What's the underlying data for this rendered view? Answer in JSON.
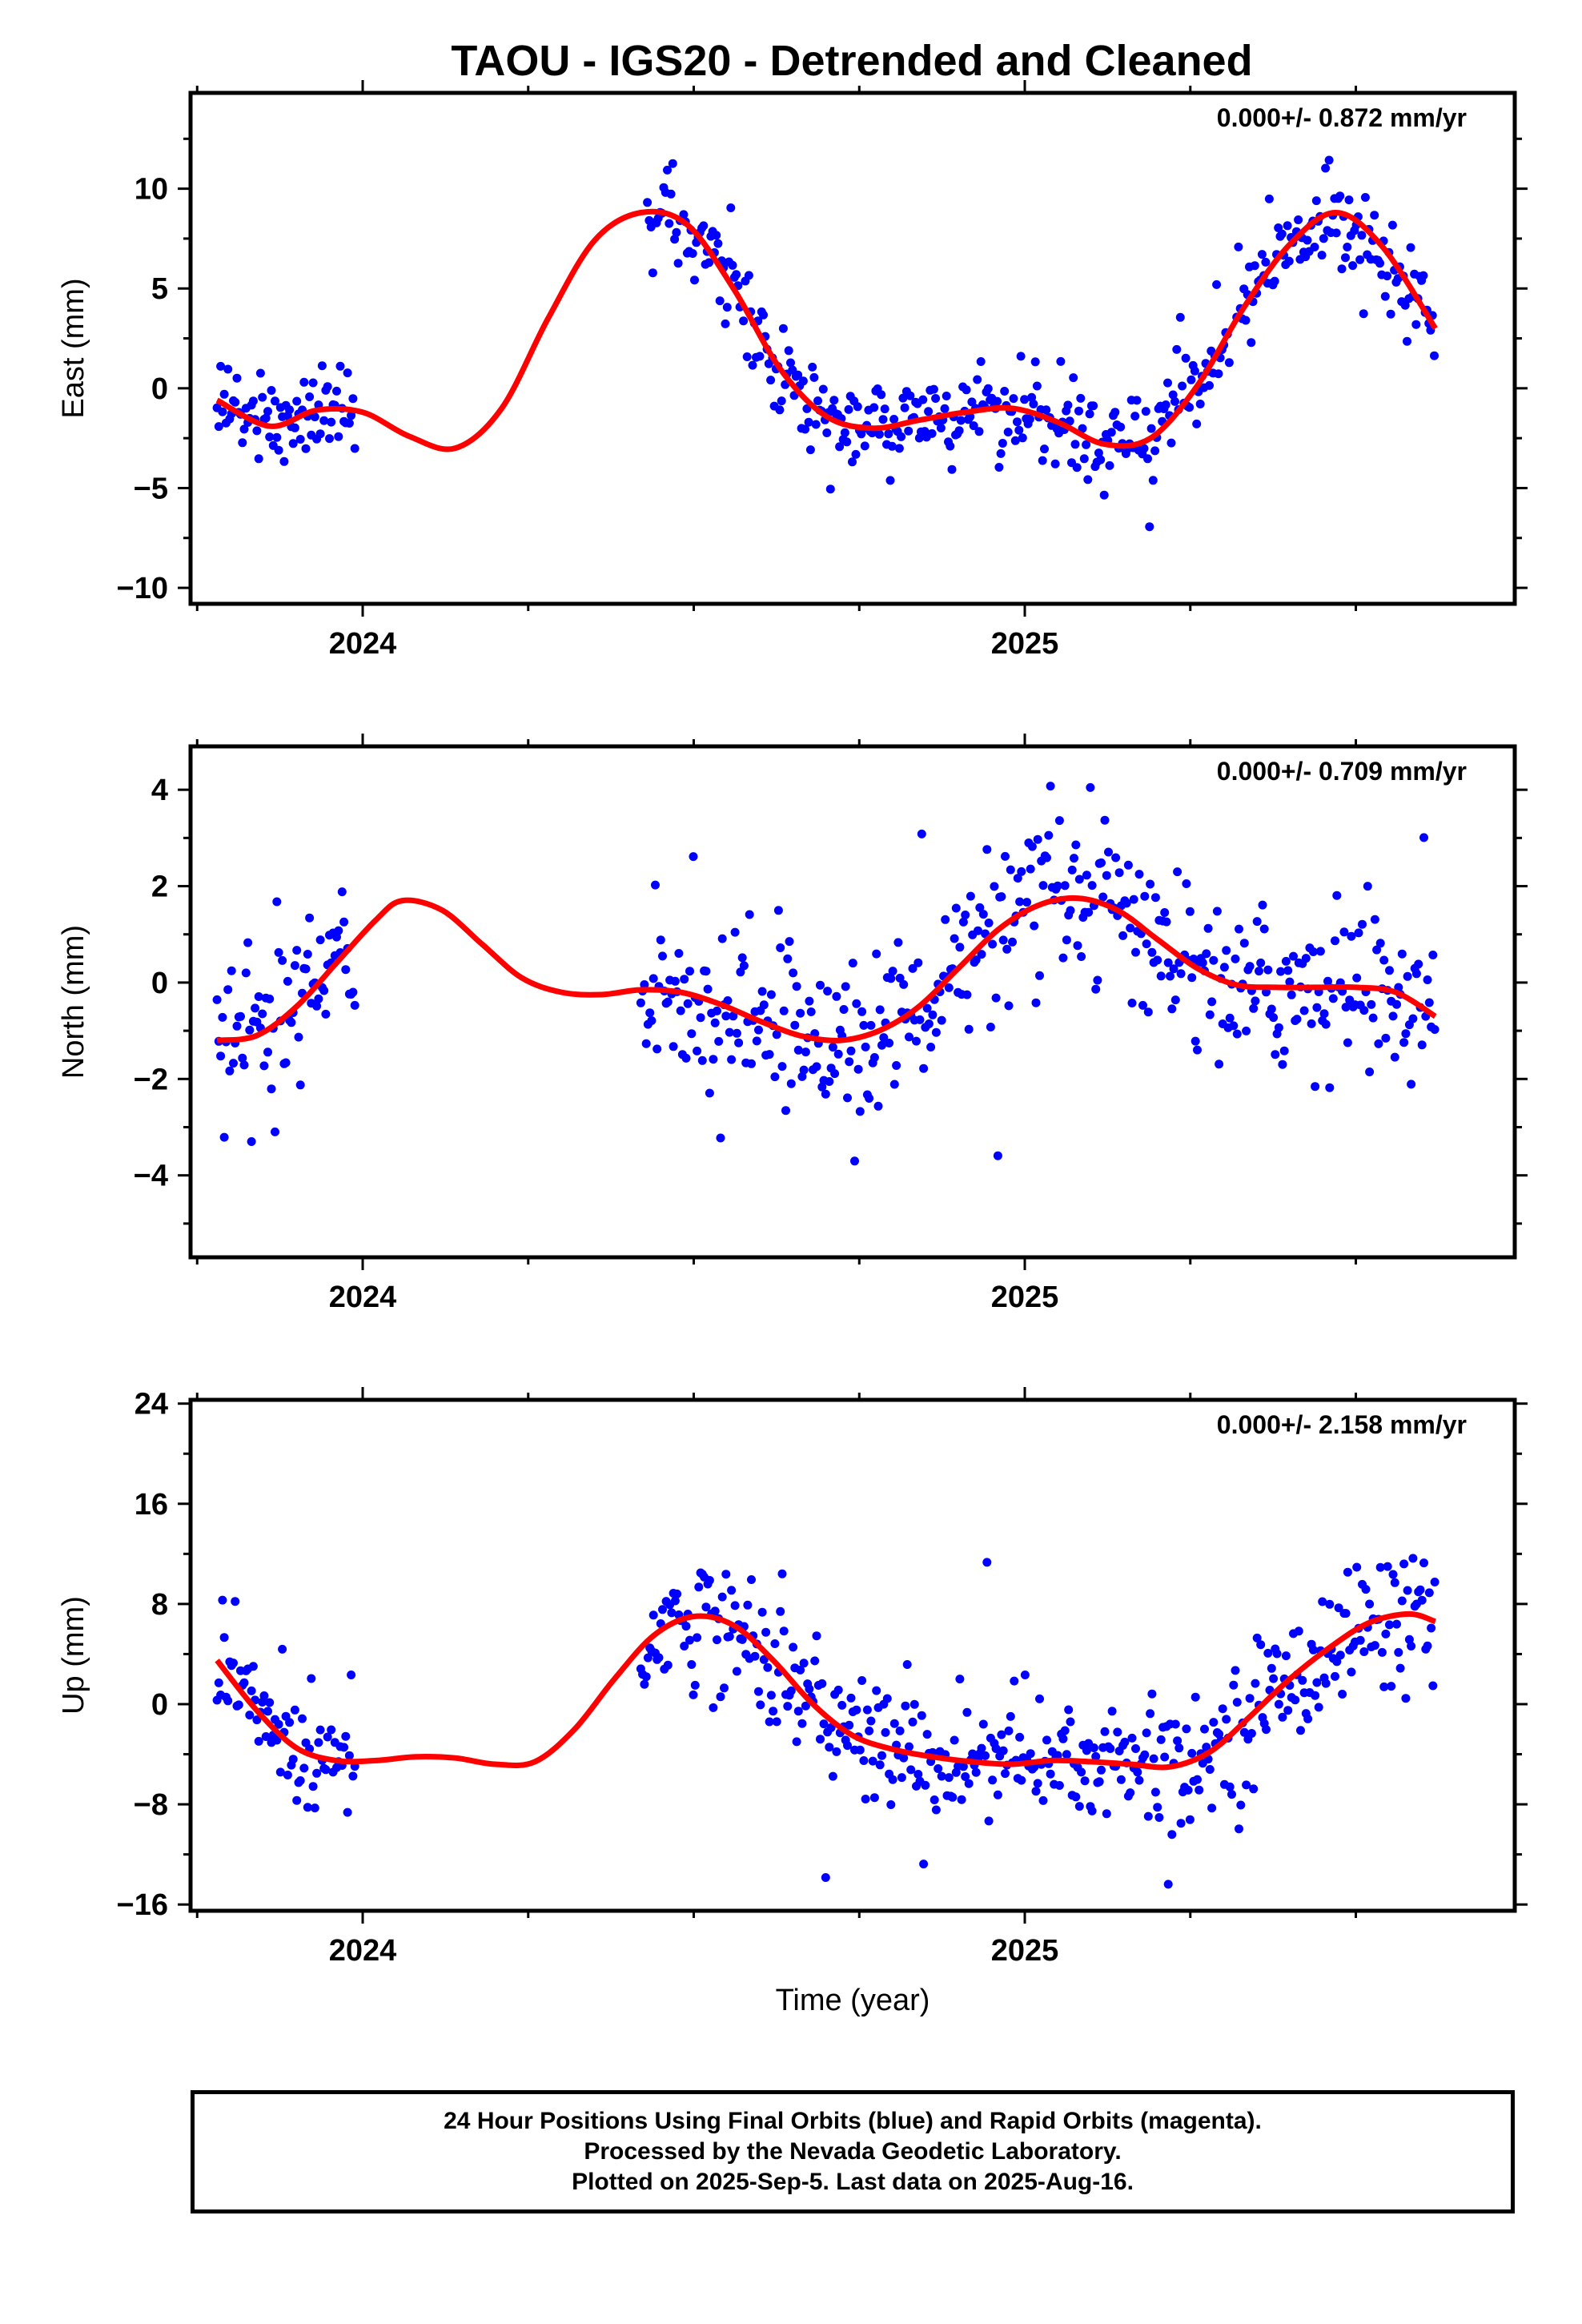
{
  "title": "TAOU - IGS20 - Detrended and Cleaned",
  "xlabel": "Time (year)",
  "footer": {
    "lines": [
      "24 Hour Positions Using Final Orbits (blue) and Rapid Orbits (magenta).",
      "Processed by the Nevada Geodetic Laboratory.",
      "Plotted on 2025-Sep-5. Last data on 2025-Aug-16."
    ]
  },
  "colors": {
    "points": "#0000ff",
    "fit": "#ff0000",
    "axes": "#000000"
  },
  "chart_data": [
    {
      "type": "scatter",
      "ylabel": "East (mm)",
      "rate_label": "0.000+/- 0.872 mm/yr",
      "xlim": [
        2023.74,
        2025.74
      ],
      "ylim": [
        -10.8,
        14.8
      ],
      "xticks": [
        2024,
        2025
      ],
      "xticklabels": [
        "2024",
        "2025"
      ],
      "yticks": [
        -10,
        -5,
        0,
        5,
        10
      ],
      "yticklabels": [
        "−10",
        "−5",
        "0",
        "5",
        "10"
      ],
      "segments": [
        [
          2023.78,
          2023.99
        ],
        [
          2024.43,
          2025.31
        ],
        [
          2025.32,
          2025.62
        ]
      ],
      "fit": {
        "x": [
          2023.78,
          2023.86,
          2023.93,
          2024.0,
          2024.07,
          2024.14,
          2024.21,
          2024.28,
          2024.35,
          2024.42,
          2024.49,
          2024.56,
          2024.63,
          2024.7,
          2024.77,
          2024.84,
          2024.91,
          2024.98,
          2025.05,
          2025.12,
          2025.19,
          2025.26,
          2025.33,
          2025.4,
          2025.47,
          2025.54,
          2025.62
        ],
        "y": [
          -0.6,
          -1.9,
          -1.1,
          -1.2,
          -2.4,
          -3.0,
          -1.0,
          3.5,
          7.4,
          8.8,
          8.2,
          5.0,
          1.0,
          -1.4,
          -2.0,
          -1.6,
          -1.2,
          -1.0,
          -1.7,
          -2.8,
          -2.5,
          0.1,
          4.0,
          7.2,
          8.8,
          7.1,
          3.0
        ]
      },
      "noise": 1.3
    },
    {
      "type": "scatter",
      "ylabel": "North (mm)",
      "rate_label": "0.000+/- 0.709 mm/yr",
      "xlim": [
        2023.74,
        2025.74
      ],
      "ylim": [
        -5.7,
        4.9
      ],
      "xticks": [
        2024,
        2025
      ],
      "xticklabels": [
        "2024",
        "2025"
      ],
      "yticks": [
        -4,
        -2,
        0,
        2,
        4
      ],
      "yticklabels": [
        "−4",
        "−2",
        "0",
        "2",
        "4"
      ],
      "segments": [
        [
          2023.78,
          2023.99
        ],
        [
          2024.42,
          2025.62
        ]
      ],
      "fit": {
        "x": [
          2023.78,
          2023.84,
          2023.9,
          2023.96,
          2024.02,
          2024.06,
          2024.12,
          2024.18,
          2024.24,
          2024.3,
          2024.36,
          2024.42,
          2024.48,
          2024.54,
          2024.6,
          2024.66,
          2024.72,
          2024.78,
          2024.84,
          2024.9,
          2024.96,
          2025.02,
          2025.08,
          2025.14,
          2025.2,
          2025.26,
          2025.32,
          2025.38,
          2025.44,
          2025.5,
          2025.56,
          2025.62
        ],
        "y": [
          -1.2,
          -1.1,
          -0.5,
          0.4,
          1.3,
          1.7,
          1.5,
          0.8,
          0.1,
          -0.2,
          -0.25,
          -0.15,
          -0.2,
          -0.45,
          -0.8,
          -1.1,
          -1.2,
          -1.0,
          -0.5,
          0.3,
          1.1,
          1.6,
          1.75,
          1.5,
          0.9,
          0.3,
          -0.05,
          -0.1,
          -0.1,
          -0.1,
          -0.2,
          -0.7
        ]
      },
      "noise": 1.0
    },
    {
      "type": "scatter",
      "ylabel": "Up (mm)",
      "rate_label": "0.000+/- 2.158 mm/yr",
      "xlim": [
        2023.74,
        2025.74
      ],
      "ylim": [
        -16.5,
        24.3
      ],
      "xticks": [
        2024,
        2025
      ],
      "xticklabels": [
        "2024",
        "2025"
      ],
      "yticks": [
        -16,
        -8,
        0,
        8,
        16,
        24
      ],
      "yticklabels": [
        "−16",
        "−8",
        "0",
        "8",
        "16",
        "24"
      ],
      "segments": [
        [
          2023.78,
          2023.99
        ],
        [
          2024.42,
          2025.62
        ]
      ],
      "fit": {
        "x": [
          2023.78,
          2023.84,
          2023.9,
          2023.96,
          2024.02,
          2024.08,
          2024.14,
          2024.2,
          2024.26,
          2024.32,
          2024.38,
          2024.44,
          2024.5,
          2024.56,
          2024.62,
          2024.68,
          2024.74,
          2024.8,
          2024.86,
          2024.92,
          2024.98,
          2025.04,
          2025.1,
          2025.16,
          2025.22,
          2025.28,
          2025.34,
          2025.4,
          2025.46,
          2025.52,
          2025.58,
          2025.62
        ],
        "y": [
          3.5,
          -0.5,
          -3.5,
          -4.5,
          -4.5,
          -4.2,
          -4.3,
          -4.8,
          -4.6,
          -2.0,
          2.0,
          5.5,
          7.0,
          6.3,
          3.5,
          0.0,
          -2.5,
          -3.6,
          -4.2,
          -4.6,
          -4.8,
          -4.5,
          -4.6,
          -4.8,
          -5.0,
          -3.8,
          -1.0,
          2.0,
          4.5,
          6.5,
          7.2,
          6.6
        ]
      },
      "noise": 3.2
    }
  ]
}
